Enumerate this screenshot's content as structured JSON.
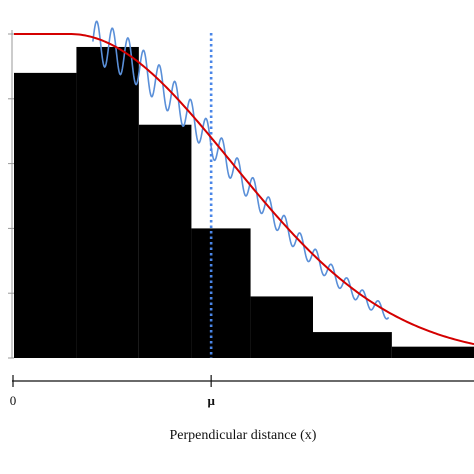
{
  "chart_data": {
    "type": "bar",
    "xlabel": "Perpendicular distance (x)",
    "x_tick_labels": [
      "0",
      "μ"
    ],
    "mu": 3.0,
    "xlim": [
      0,
      7.0
    ],
    "ylim": [
      0,
      1.0
    ],
    "bars": [
      {
        "x0": 0.0,
        "x1": 0.95,
        "height": 0.88
      },
      {
        "x0": 0.95,
        "x1": 1.9,
        "height": 0.96
      },
      {
        "x0": 1.9,
        "x1": 2.7,
        "height": 0.72
      },
      {
        "x0": 2.7,
        "x1": 3.6,
        "height": 0.4
      },
      {
        "x0": 3.6,
        "x1": 4.55,
        "height": 0.19
      },
      {
        "x0": 4.55,
        "x1": 5.75,
        "height": 0.08
      },
      {
        "x0": 5.75,
        "x1": 7.0,
        "height": 0.035
      }
    ],
    "detection_function": {
      "name": "half-normal",
      "sigma": 2.45,
      "shoulder": 0.85,
      "color": "#d40000"
    },
    "wavy_band": {
      "color": "#5a8fd8",
      "x_start": 1.2,
      "x_end": 5.7
    },
    "mu_line": {
      "color": "#4a86e8",
      "style": "dotted"
    },
    "bar_color": "#000000",
    "grid": false,
    "legend": "none"
  }
}
